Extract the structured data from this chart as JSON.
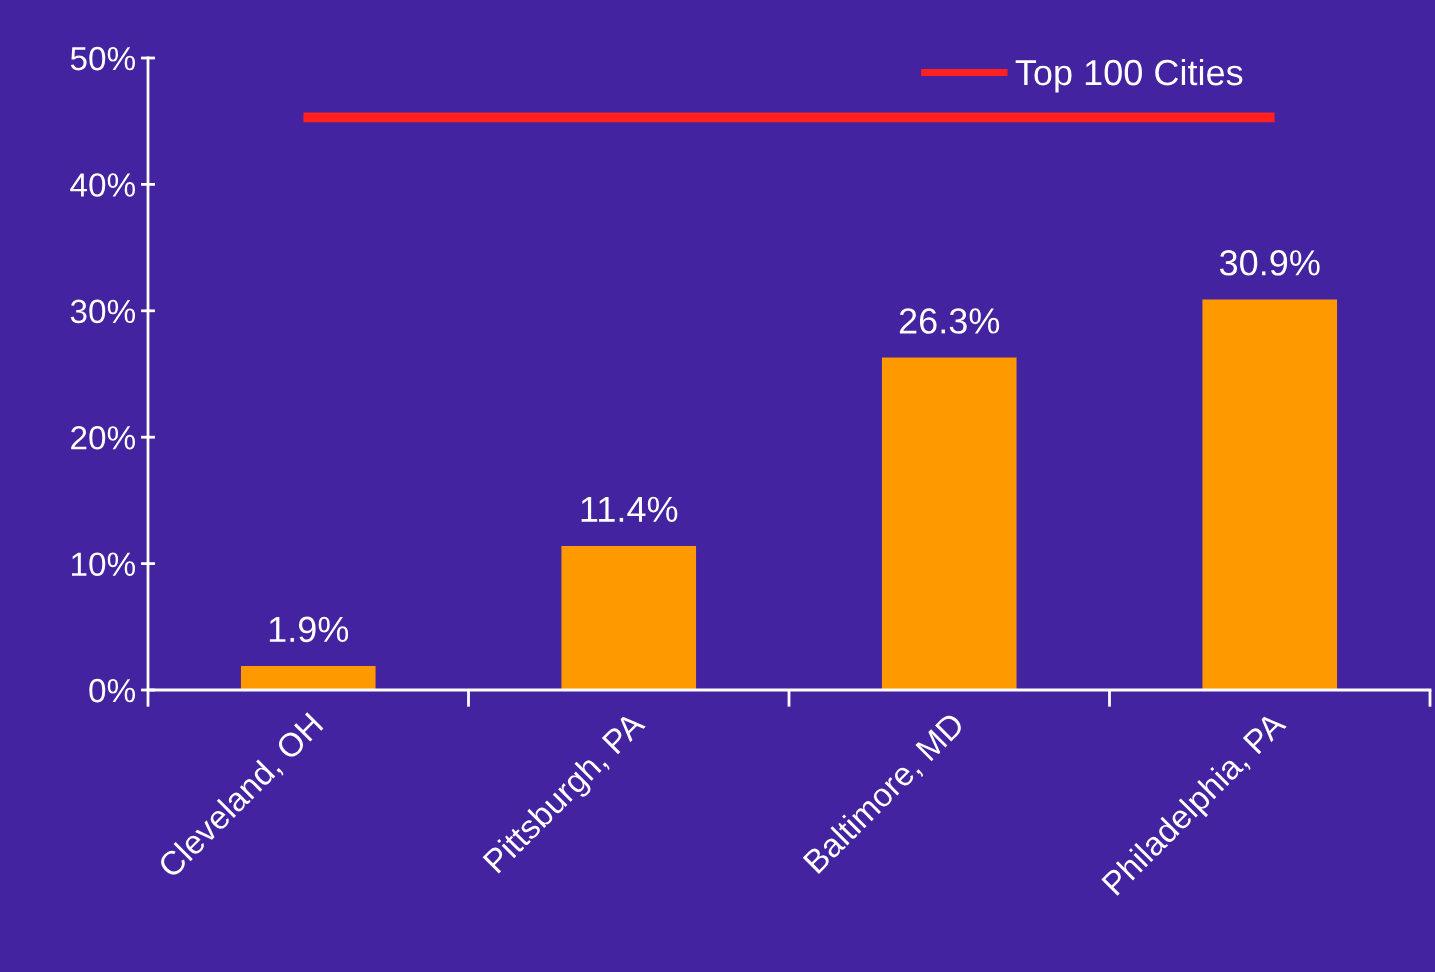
{
  "chart_data": {
    "type": "bar",
    "categories": [
      "Cleveland, OH",
      "Pittsburgh, PA",
      "Baltimore, MD",
      "Philadelphia, PA"
    ],
    "series": [
      {
        "color": "#ff9900",
        "values": [
          1.9,
          11.4,
          26.3,
          30.9
        ],
        "value_labels": [
          "1.9%",
          "11.4%",
          "26.3%",
          "30.9%"
        ]
      },
      {
        "type": "line",
        "name": "Top 100 Cities",
        "color": "#ff2020",
        "values": [
          45.3,
          45.3,
          45.3,
          45.3
        ]
      }
    ],
    "ylim": [
      0,
      50
    ],
    "yticks": [
      {
        "value": 0,
        "label": "0%"
      },
      {
        "value": 10,
        "label": "10%"
      },
      {
        "value": 20,
        "label": "20%"
      },
      {
        "value": 30,
        "label": "30%"
      },
      {
        "value": 40,
        "label": "40%"
      },
      {
        "value": 50,
        "label": "50%"
      }
    ],
    "grid": false,
    "legend": "top right",
    "marker": "none",
    "line_style": "solid"
  }
}
